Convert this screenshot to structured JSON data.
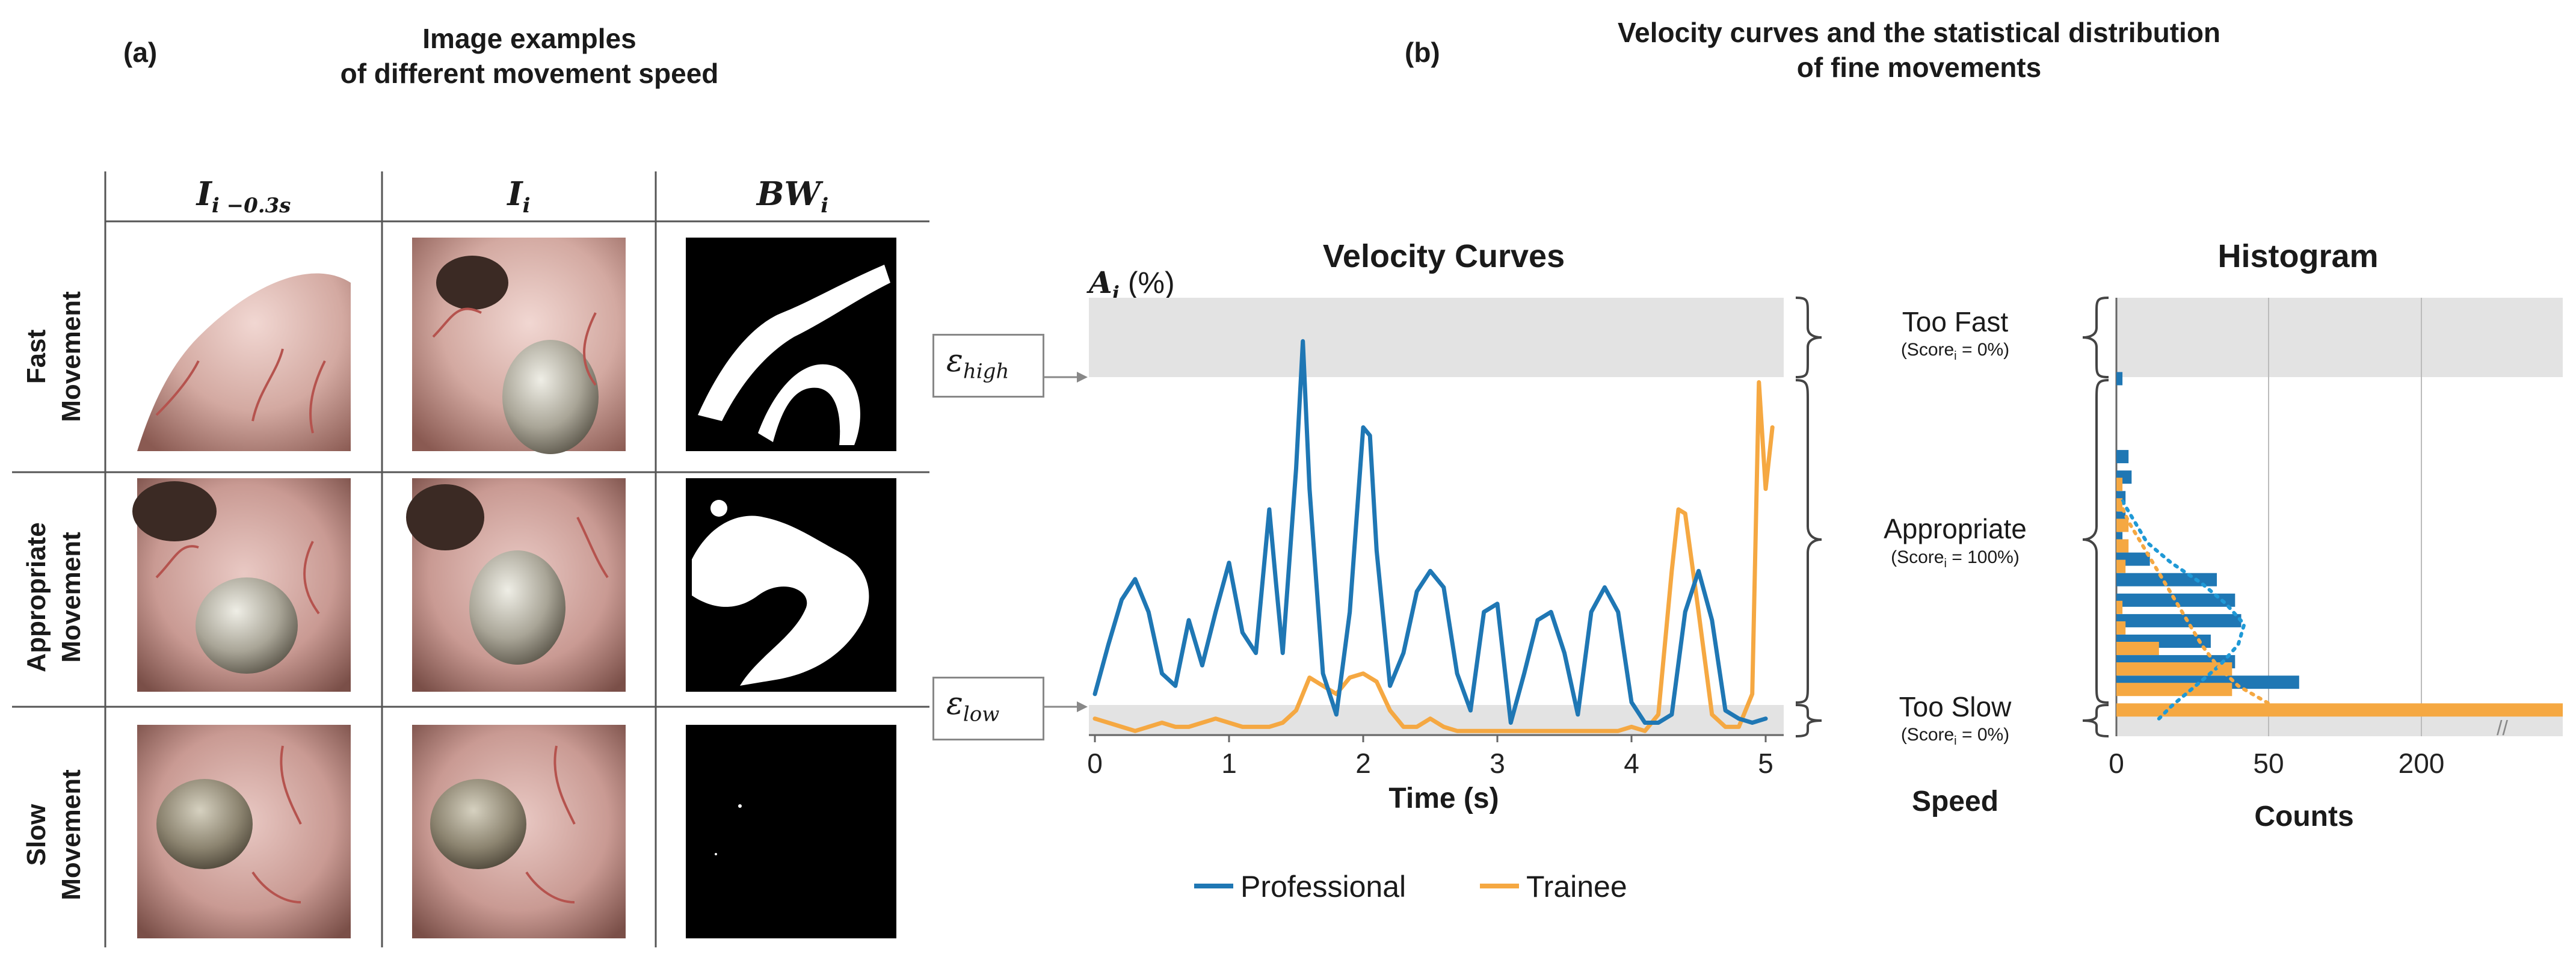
{
  "panel_a": {
    "label": "(a)",
    "title_line1": "Image examples",
    "title_line2": "of different movement speed",
    "columns": [
      {
        "base": "I",
        "sub": "i −0.3s"
      },
      {
        "base": "I",
        "sub": "i"
      },
      {
        "base": "BW",
        "sub": "i"
      }
    ],
    "rows": [
      {
        "line1": "Fast",
        "line2": "Movement"
      },
      {
        "line1": "Appropriate",
        "line2": "Movement"
      },
      {
        "line1": "Slow",
        "line2": "Movement"
      }
    ]
  },
  "panel_b": {
    "label": "(b)",
    "title_line1": "Velocity curves and the statistical distribution",
    "title_line2": "of  fine movements"
  },
  "chart_data": [
    {
      "type": "line",
      "title": "Velocity Curves",
      "xlabel": "Time (s)",
      "ylabel_base": "A",
      "ylabel_sub": "i",
      "ylabel_unit": "(%)",
      "x_ticks": [
        0,
        1,
        2,
        3,
        4,
        5
      ],
      "xlim": [
        0,
        5.1
      ],
      "ylim": [
        0,
        1
      ],
      "thresholds": {
        "high": {
          "label_base": "ε",
          "label_sub": "high",
          "value": 0.8
        },
        "low": {
          "label_base": "ε",
          "label_sub": "low",
          "value": 0.04
        }
      },
      "series": [
        {
          "name": "Professional",
          "color": "#1f77b4",
          "x": [
            0.0,
            0.1,
            0.2,
            0.3,
            0.4,
            0.5,
            0.6,
            0.7,
            0.8,
            0.9,
            1.0,
            1.1,
            1.2,
            1.3,
            1.35,
            1.4,
            1.5,
            1.55,
            1.6,
            1.7,
            1.8,
            1.9,
            2.0,
            2.05,
            2.1,
            2.2,
            2.3,
            2.4,
            2.5,
            2.6,
            2.7,
            2.8,
            2.9,
            3.0,
            3.1,
            3.2,
            3.3,
            3.4,
            3.5,
            3.6,
            3.7,
            3.8,
            3.9,
            4.0,
            4.1,
            4.2,
            4.3,
            4.4,
            4.5,
            4.6,
            4.7,
            4.8,
            4.9,
            5.0
          ],
          "y": [
            0.1,
            0.22,
            0.33,
            0.38,
            0.3,
            0.15,
            0.12,
            0.28,
            0.17,
            0.3,
            0.42,
            0.25,
            0.2,
            0.55,
            0.37,
            0.2,
            0.65,
            0.96,
            0.6,
            0.15,
            0.05,
            0.3,
            0.75,
            0.73,
            0.45,
            0.12,
            0.2,
            0.35,
            0.4,
            0.36,
            0.15,
            0.06,
            0.3,
            0.32,
            0.03,
            0.15,
            0.28,
            0.3,
            0.2,
            0.05,
            0.3,
            0.36,
            0.3,
            0.08,
            0.03,
            0.03,
            0.05,
            0.3,
            0.4,
            0.28,
            0.06,
            0.04,
            0.03,
            0.04
          ]
        },
        {
          "name": "Trainee",
          "color": "#f5a842",
          "x": [
            0.0,
            0.1,
            0.2,
            0.3,
            0.4,
            0.5,
            0.6,
            0.7,
            0.8,
            0.9,
            1.0,
            1.1,
            1.2,
            1.3,
            1.4,
            1.5,
            1.6,
            1.7,
            1.8,
            1.9,
            2.0,
            2.1,
            2.2,
            2.3,
            2.4,
            2.5,
            2.6,
            2.7,
            2.8,
            2.9,
            3.0,
            3.1,
            3.2,
            3.3,
            3.4,
            3.5,
            3.6,
            3.7,
            3.8,
            3.9,
            4.0,
            4.1,
            4.2,
            4.3,
            4.35,
            4.4,
            4.5,
            4.6,
            4.7,
            4.8,
            4.9,
            4.95,
            5.0,
            5.05
          ],
          "y": [
            0.04,
            0.03,
            0.02,
            0.01,
            0.02,
            0.03,
            0.02,
            0.02,
            0.03,
            0.04,
            0.03,
            0.02,
            0.02,
            0.02,
            0.03,
            0.06,
            0.14,
            0.12,
            0.1,
            0.14,
            0.15,
            0.13,
            0.06,
            0.02,
            0.02,
            0.04,
            0.02,
            0.01,
            0.01,
            0.01,
            0.01,
            0.01,
            0.01,
            0.01,
            0.01,
            0.01,
            0.01,
            0.01,
            0.01,
            0.01,
            0.02,
            0.01,
            0.05,
            0.4,
            0.55,
            0.54,
            0.3,
            0.05,
            0.02,
            0.02,
            0.1,
            0.86,
            0.6,
            0.75
          ]
        }
      ],
      "legend": "bottom"
    },
    {
      "type": "bar",
      "orientation": "horizontal",
      "title": "Histogram",
      "xlabel": "Counts",
      "ylabel": "Speed",
      "x_ticks": [
        0,
        50,
        200
      ],
      "zones": [
        {
          "label": "Too Fast",
          "score": "(Score",
          "score_sub": "i",
          "score_end": " = 0%)"
        },
        {
          "label": "Appropriate",
          "score": "(Score",
          "score_sub": "i",
          "score_end": " = 100%)"
        },
        {
          "label": "Too Slow",
          "score": "(Score",
          "score_sub": "i",
          "score_end": " = 0%)"
        }
      ],
      "bins": [
        0.86,
        0.72,
        0.67,
        0.62,
        0.57,
        0.52,
        0.47,
        0.42,
        0.37,
        0.32,
        0.27,
        0.22,
        0.17,
        0.12,
        0.07,
        0.04,
        0.0
      ],
      "series": [
        {
          "name": "Professional",
          "color": "#1f77b4",
          "values": [
            2,
            0,
            4,
            5,
            3,
            3,
            2,
            11,
            33,
            39,
            41,
            31,
            39,
            80,
            0,
            0,
            0
          ]
        },
        {
          "name": "Trainee",
          "color": "#f5a842",
          "values": [
            0,
            0,
            0,
            2,
            2,
            4,
            4,
            3,
            0,
            2,
            3,
            14,
            38,
            38,
            200,
            0,
            0
          ]
        }
      ],
      "axis_break": "//"
    }
  ]
}
